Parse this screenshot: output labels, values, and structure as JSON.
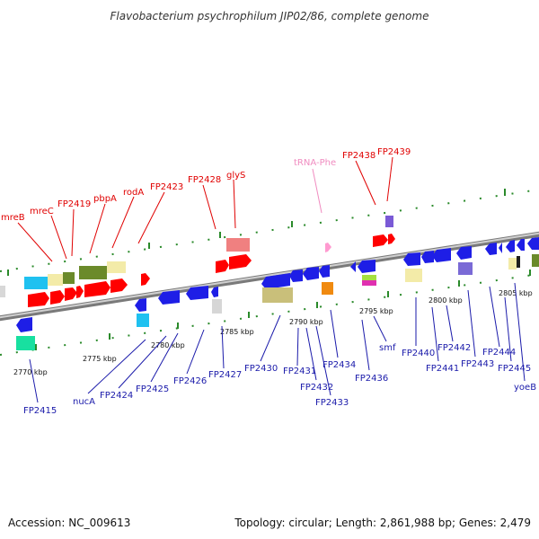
{
  "title": "Flavobacterium psychrophilum JIP02/86, complete genome",
  "footer": {
    "accession": "Accession: NC_009613",
    "topology": "Topology: circular; Length: 2,861,988 bp; Genes: 2,479"
  },
  "colors": {
    "forward_label": "#e00000",
    "reverse_label": "#1a1aaa",
    "trna_label": "#f08cc0",
    "forward_gene": "#ff0000",
    "reverse_gene": "#1e1ee6",
    "tick": "#2a8a2a",
    "backbone": "#9a9a9a"
  },
  "axis_labels": {
    "k2770": "2770 kbp",
    "k2775": "2775 kbp",
    "k2780": "2780 kbp",
    "k2785": "2785 kbp",
    "k2790": "2790 kbp",
    "k2795": "2795 kbp",
    "k2800": "2800 kbp",
    "k2805": "2805 kbp"
  },
  "forward_genes": {
    "mreB": "mreB",
    "mreC": "mreC",
    "FP2419": "FP2419",
    "pbpA": "pbpA",
    "rodA": "rodA",
    "FP2423": "FP2423",
    "FP2428": "FP2428",
    "glyS": "glyS",
    "tRNA_Phe": "tRNA-Phe",
    "FP2438": "FP2438",
    "FP2439": "FP2439"
  },
  "reverse_genes": {
    "FP2415": "FP2415",
    "nucA": "nucA",
    "FP2424": "FP2424",
    "FP2425": "FP2425",
    "FP2426": "FP2426",
    "FP2427": "FP2427",
    "FP2430": "FP2430",
    "FP2431": "FP2431",
    "FP2432": "FP2432",
    "FP2433": "FP2433",
    "FP2434": "FP2434",
    "FP2436": "FP2436",
    "smf": "smf",
    "FP2440": "FP2440",
    "FP2441": "FP2441",
    "FP2442": "FP2442",
    "FP2443": "FP2443",
    "FP2444": "FP2444",
    "FP2445": "FP2445",
    "yoeB": "yoeB"
  }
}
